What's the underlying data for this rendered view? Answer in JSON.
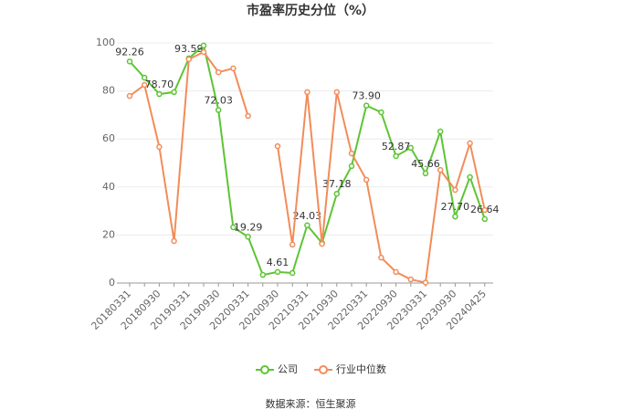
{
  "chart_data": {
    "type": "line",
    "title": "市盈率历史分位（%）",
    "categories": [
      "20180331",
      null,
      "20180930",
      null,
      "20190331",
      null,
      "20190930",
      null,
      "20200331",
      null,
      "20200930",
      null,
      "20210331",
      null,
      "20210930",
      null,
      "20220331",
      null,
      "20220930",
      null,
      "20230331",
      null,
      "20230930",
      null,
      "20240425"
    ],
    "series": [
      {
        "name": "公司",
        "color": "#5dc534",
        "values": [
          92.26,
          85.5,
          78.7,
          79.5,
          93.59,
          98.9,
          72.03,
          23.2,
          19.29,
          3.4,
          4.61,
          4.2,
          24.03,
          16.7,
          37.18,
          48.7,
          73.9,
          71.1,
          52.87,
          56.3,
          45.66,
          63.1,
          27.7,
          44.1,
          26.64
        ],
        "value_labels": [
          "92.26",
          null,
          "78.70",
          null,
          "93.59",
          null,
          "72.03",
          null,
          "19.29",
          null,
          "4.61",
          null,
          "24.03",
          null,
          "37.18",
          null,
          "73.90",
          null,
          "52.87",
          null,
          "45.66",
          null,
          "27.70",
          null,
          "26.64"
        ]
      },
      {
        "name": "行业中位数",
        "color": "#f28c5a",
        "values": [
          77.9,
          82.5,
          56.7,
          17.5,
          93.2,
          96.2,
          87.8,
          89.4,
          69.6,
          null,
          57.0,
          16.0,
          79.5,
          16.3,
          79.5,
          54.0,
          43.0,
          10.6,
          4.6,
          1.5,
          0.2,
          47.1,
          38.8,
          58.2,
          30.4
        ]
      }
    ],
    "ylim": [
      0,
      100
    ],
    "yticks": [
      0,
      20,
      40,
      60,
      80,
      100
    ],
    "grid": true,
    "legend": "bottom",
    "source": "数据来源：恒生聚源"
  }
}
